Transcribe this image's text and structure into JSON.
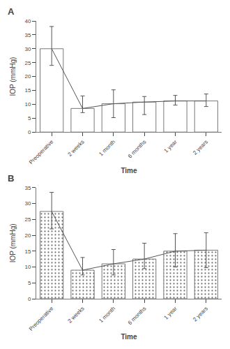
{
  "chart_data": [
    {
      "type": "bar",
      "title": "A",
      "xlabel": "Time",
      "ylabel": "IOP (mmHg)",
      "categories": [
        "Preoperative",
        "2 weeks",
        "1 month",
        "6 months",
        "1 year",
        "2 years"
      ],
      "series": [
        {
          "type": "bar",
          "color": "#ffffff",
          "values": [
            30.0,
            8.5,
            10.2,
            10.8,
            11.2,
            11.2
          ]
        },
        {
          "type": "line",
          "color": "#555555",
          "values": [
            30.0,
            8.5,
            10.2,
            10.8,
            11.2,
            11.2
          ],
          "error_low": [
            6.0,
            1.5,
            5.0,
            4.5,
            1.5,
            2.0
          ],
          "error_high": [
            8.0,
            4.5,
            5.0,
            2.0,
            2.0,
            2.5
          ]
        }
      ],
      "ylim": [
        0,
        40
      ],
      "yticks": [
        0,
        5,
        10,
        15,
        20,
        25,
        30,
        35,
        40
      ],
      "grid": false
    },
    {
      "type": "bar",
      "title": "B",
      "xlabel": "Time",
      "ylabel": "IOP (mmHg)",
      "categories": [
        "Preoperative",
        "2 weeks",
        "1 month",
        "6 months",
        "1 year",
        "2 years"
      ],
      "series": [
        {
          "type": "bar",
          "color": "#ffffff",
          "values": [
            27.5,
            9.0,
            11.0,
            12.5,
            15.0,
            15.3
          ]
        },
        {
          "type": "line",
          "color": "#555555",
          "values": [
            27.5,
            9.0,
            11.0,
            12.5,
            15.0,
            15.3
          ],
          "error_low": [
            5.5,
            1.5,
            3.5,
            3.0,
            5.0,
            5.5
          ],
          "error_high": [
            6.0,
            4.0,
            4.5,
            5.0,
            5.5,
            5.5
          ]
        }
      ],
      "ylim": [
        0,
        35
      ],
      "yticks": [
        0,
        5,
        10,
        15,
        20,
        25,
        30,
        35
      ],
      "grid": false
    }
  ]
}
